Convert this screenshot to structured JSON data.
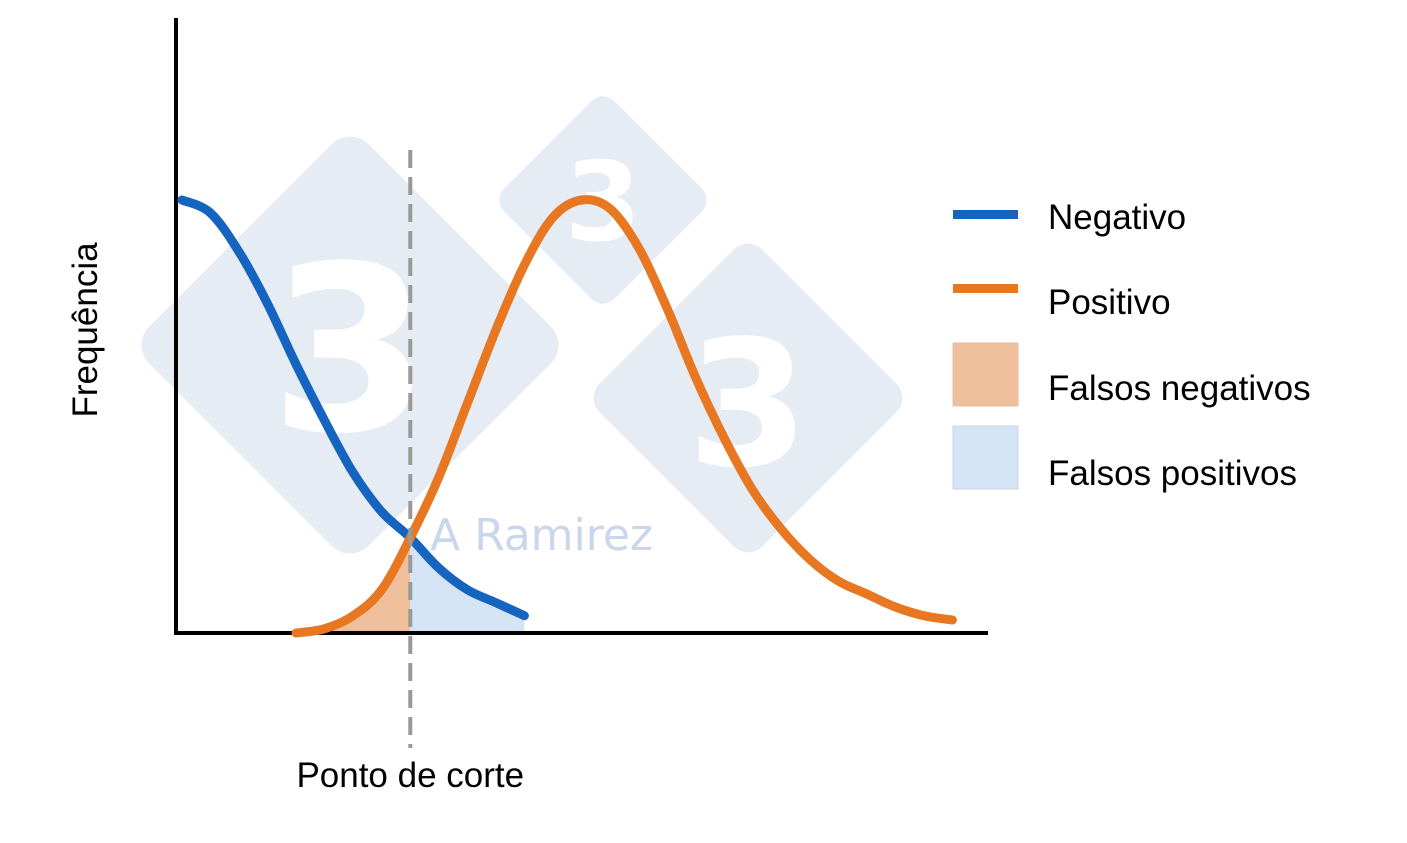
{
  "chart_data": {
    "type": "line",
    "xlabel": "Ponto de corte",
    "ylabel": "Frequência",
    "cutoff_x": 2.4,
    "xlim": [
      0,
      8.6
    ],
    "ylim": [
      0,
      1.08
    ],
    "series": [
      {
        "name": "Negativo",
        "color": "#1565c0",
        "x": [
          0,
          0.3,
          0.6,
          0.9,
          1.2,
          1.5,
          1.8,
          2.1,
          2.4,
          2.7,
          3.0,
          3.3,
          3.6
        ],
        "values": [
          1.0,
          0.97,
          0.88,
          0.76,
          0.62,
          0.49,
          0.37,
          0.28,
          0.22,
          0.15,
          0.1,
          0.07,
          0.04
        ]
      },
      {
        "name": "Positivo",
        "color": "#e87722",
        "x": [
          1.2,
          1.5,
          1.8,
          2.1,
          2.4,
          2.7,
          3.0,
          3.3,
          3.6,
          3.9,
          4.2,
          4.5,
          4.8,
          5.1,
          5.4,
          5.7,
          6.0,
          6.3,
          6.6,
          6.9,
          7.2,
          7.5,
          7.8,
          8.1
        ],
        "values": [
          0.0,
          0.01,
          0.04,
          0.1,
          0.22,
          0.36,
          0.53,
          0.7,
          0.85,
          0.96,
          1.0,
          0.98,
          0.89,
          0.75,
          0.59,
          0.45,
          0.33,
          0.24,
          0.17,
          0.12,
          0.09,
          0.06,
          0.04,
          0.03
        ]
      }
    ],
    "shaded_regions": [
      {
        "name": "Falsos negativos",
        "color": "#eebf9a",
        "series": "Positivo",
        "x_range": [
          1.2,
          2.4
        ]
      },
      {
        "name": "Falsos positivos",
        "color": "#d5e4f4",
        "series": "Negativo",
        "x_range": [
          2.4,
          3.6
        ]
      }
    ],
    "legend": {
      "placement": "right",
      "items": [
        {
          "label": "Negativo",
          "kind": "line",
          "color": "#1565c0"
        },
        {
          "label": "Positivo",
          "kind": "line",
          "color": "#e87722"
        },
        {
          "label": "Falsos negativos",
          "kind": "patch",
          "color": "#eebf9a"
        },
        {
          "label": "Falsos positivos",
          "kind": "patch",
          "color": "#d5e4f4"
        }
      ]
    },
    "grid": false
  },
  "watermark": {
    "text": "A Ramirez",
    "logo_glyph": "3",
    "color": "#e6ecf4"
  }
}
